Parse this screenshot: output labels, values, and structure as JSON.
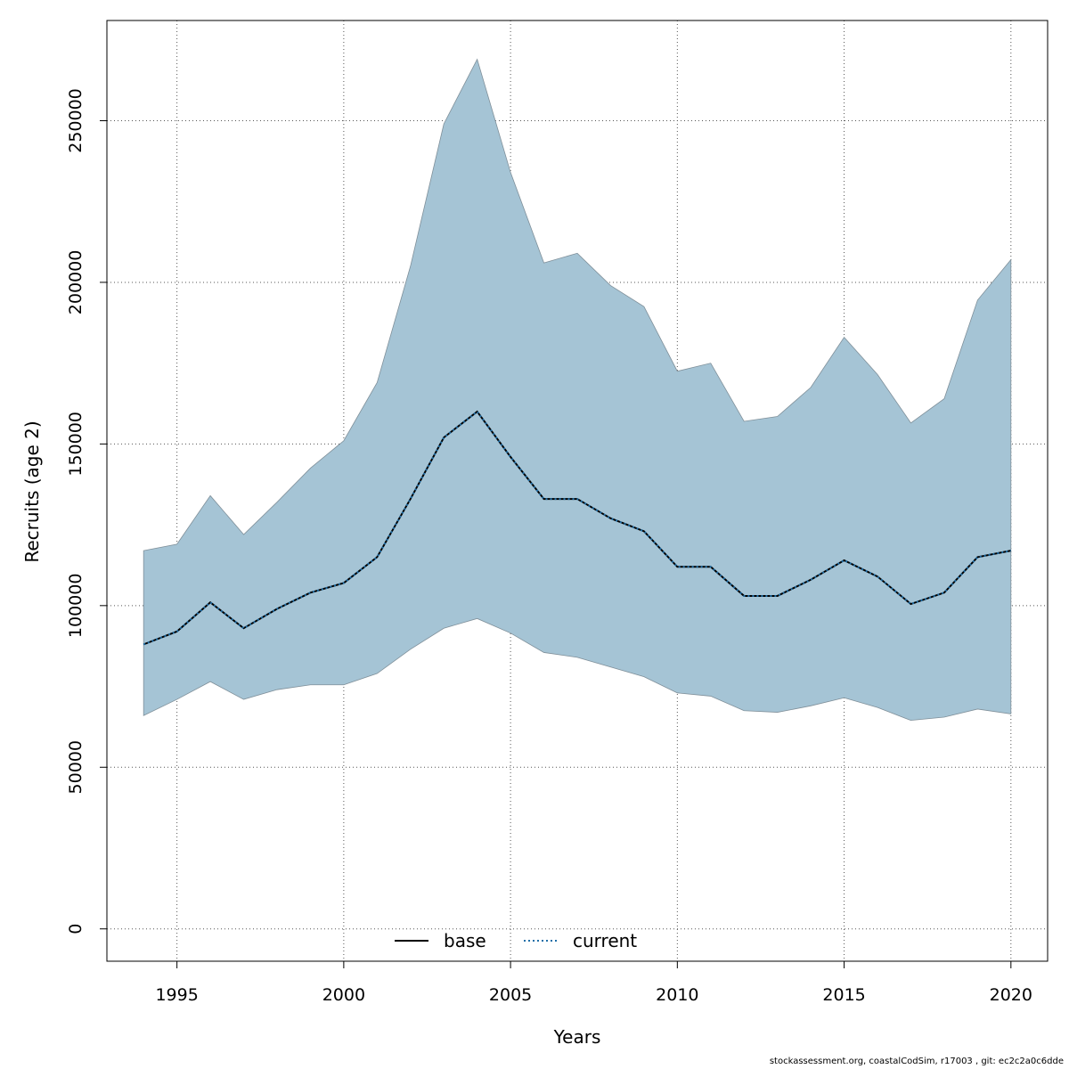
{
  "chart_data": {
    "type": "area",
    "xlabel": "Years",
    "ylabel": "Recruits (age 2)",
    "xlim": [
      1992.9,
      2021.1
    ],
    "ylim": [
      -10000,
      281000
    ],
    "x_ticks": [
      1995,
      2000,
      2005,
      2010,
      2015,
      2020
    ],
    "y_ticks": [
      0,
      50000,
      100000,
      150000,
      200000,
      250000
    ],
    "grid": true,
    "legend_position": "bottom-center",
    "x": [
      1994,
      1995,
      1996,
      1997,
      1998,
      1999,
      2000,
      2001,
      2002,
      2003,
      2004,
      2005,
      2006,
      2007,
      2008,
      2009,
      2010,
      2011,
      2012,
      2013,
      2014,
      2015,
      2016,
      2017,
      2018,
      2019,
      2020
    ],
    "series": [
      {
        "name": "base",
        "line_style": "solid",
        "color": "#000000",
        "values": [
          88000,
          92000,
          101000,
          93000,
          99000,
          104000,
          107000,
          115000,
          133000,
          152000,
          160000,
          146000,
          133000,
          133000,
          127000,
          123000,
          112000,
          112000,
          103000,
          103000,
          108000,
          114000,
          109000,
          100500,
          104000,
          115000,
          117000
        ]
      },
      {
        "name": "current",
        "line_style": "dotted",
        "color": "#1f6fa8",
        "values": [
          88000,
          92000,
          101000,
          93000,
          99000,
          104000,
          107000,
          115000,
          133000,
          152000,
          160000,
          146000,
          133000,
          133000,
          127000,
          123000,
          112000,
          112000,
          103000,
          103000,
          108000,
          114000,
          109000,
          100500,
          104000,
          115000,
          117000
        ]
      }
    ],
    "band": {
      "color": "#a5c4d5",
      "lower": [
        66000,
        71000,
        76500,
        71000,
        74000,
        75500,
        75500,
        79000,
        86500,
        93000,
        96000,
        91500,
        85500,
        84000,
        81000,
        78000,
        73000,
        72000,
        67500,
        67000,
        69000,
        71500,
        68500,
        64500,
        65500,
        68000,
        66500
      ],
      "upper": [
        117000,
        119000,
        134000,
        122000,
        132000,
        142500,
        151000,
        169000,
        205000,
        249000,
        269000,
        234000,
        206000,
        209000,
        199000,
        192500,
        172500,
        175000,
        157000,
        158500,
        167500,
        183000,
        171500,
        156500,
        164000,
        194500,
        207000
      ]
    }
  },
  "footer": "stockassessment.org, coastalCodSim, r17003 , git: ec2c2a0c6dde"
}
